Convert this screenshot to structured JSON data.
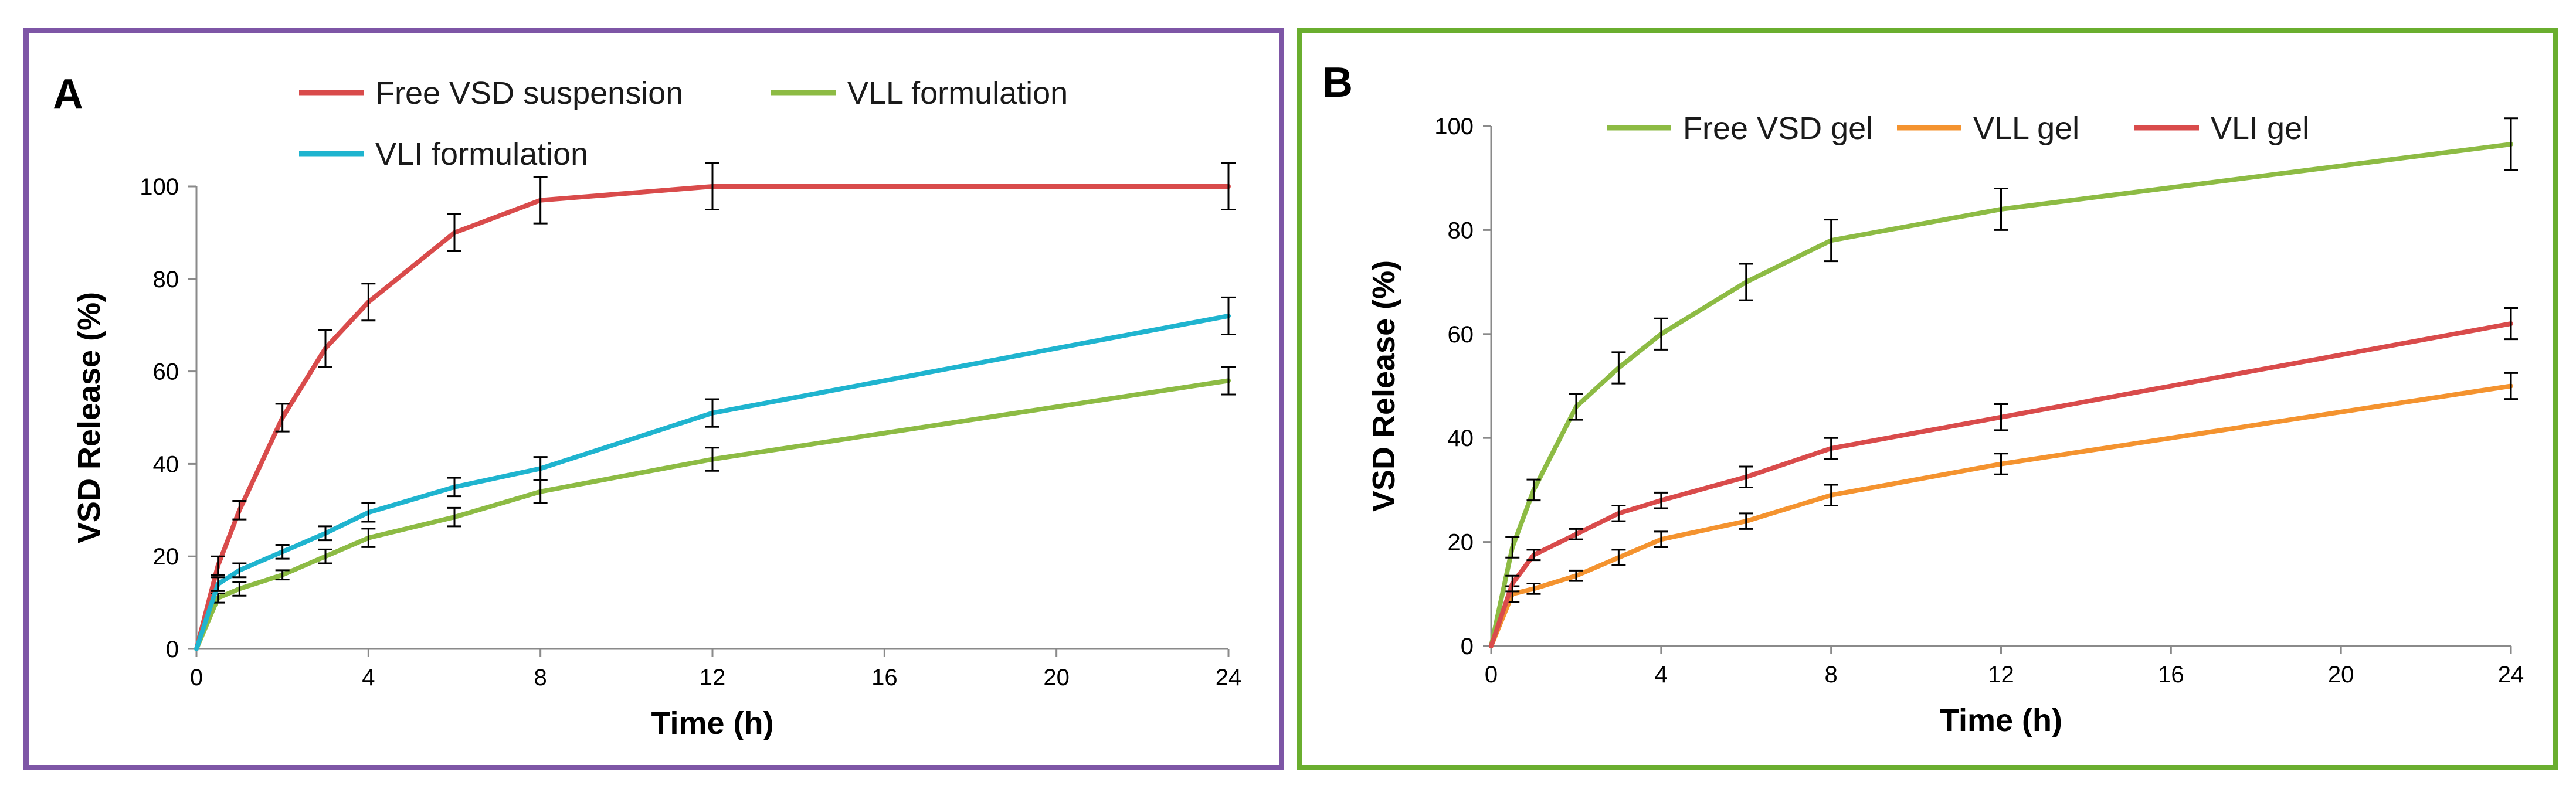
{
  "chart_data": [
    {
      "type": "line",
      "panel_label": "A",
      "xlabel": "Time (h)",
      "ylabel": "VSD Release (%)",
      "xlim": [
        0,
        24
      ],
      "ylim": [
        0,
        100
      ],
      "xticks": [
        0,
        4,
        8,
        12,
        16,
        20,
        24
      ],
      "yticks": [
        0,
        20,
        40,
        60,
        80,
        100
      ],
      "grid": false,
      "legend_position": "top",
      "series": [
        {
          "name": "Free VSD suspension",
          "color": "#d94b4b",
          "x": [
            0,
            0.5,
            1,
            2,
            3,
            4,
            6,
            8,
            12,
            24
          ],
          "y": [
            0,
            18,
            30,
            50,
            65,
            75,
            90,
            97,
            100,
            100
          ],
          "err": [
            0,
            2,
            2,
            3,
            4,
            4,
            4,
            5,
            5,
            5
          ]
        },
        {
          "name": "VLL formulation",
          "color": "#8dbb44",
          "x": [
            0,
            0.5,
            1,
            2,
            3,
            4,
            6,
            8,
            12,
            24
          ],
          "y": [
            0,
            11,
            13,
            16,
            20,
            24,
            28.5,
            34,
            41,
            58
          ],
          "err": [
            0,
            1,
            1.5,
            1,
            1.5,
            2,
            2,
            2.5,
            2.5,
            3
          ]
        },
        {
          "name": "VLI formulation",
          "color": "#1fb4cf",
          "x": [
            0,
            0.5,
            1,
            2,
            3,
            4,
            6,
            8,
            12,
            24
          ],
          "y": [
            0,
            14,
            17,
            21,
            25,
            29.5,
            35,
            39,
            51,
            72
          ],
          "err": [
            0,
            1.5,
            1.5,
            1.5,
            1.5,
            2,
            2,
            2.5,
            3,
            4
          ]
        }
      ]
    },
    {
      "type": "line",
      "panel_label": "B",
      "xlabel": "Time (h)",
      "ylabel": "VSD Release (%)",
      "xlim": [
        0,
        24
      ],
      "ylim": [
        0,
        100
      ],
      "xticks": [
        0,
        4,
        8,
        12,
        16,
        20,
        24
      ],
      "yticks": [
        0,
        20,
        40,
        60,
        80,
        100
      ],
      "grid": false,
      "legend_position": "top",
      "series": [
        {
          "name": "Free VSD gel",
          "color": "#8dbb44",
          "x": [
            0,
            0.5,
            1,
            2,
            3,
            4,
            6,
            8,
            12,
            24
          ],
          "y": [
            0,
            19,
            30,
            46,
            53.5,
            60,
            70,
            78,
            84,
            96.5
          ],
          "err": [
            0,
            2,
            2,
            2.5,
            3,
            3,
            3.5,
            4,
            4,
            5
          ]
        },
        {
          "name": "VLL gel",
          "color": "#f4932f",
          "x": [
            0,
            0.5,
            1,
            2,
            3,
            4,
            6,
            8,
            12,
            24
          ],
          "y": [
            0,
            10,
            11,
            13.5,
            17,
            20.5,
            24,
            29,
            35,
            50
          ],
          "err": [
            0,
            1.5,
            1,
            1,
            1.5,
            1.5,
            1.5,
            2,
            2,
            2.5
          ]
        },
        {
          "name": "VLI gel",
          "color": "#d94b4b",
          "x": [
            0,
            0.5,
            1,
            2,
            3,
            4,
            6,
            8,
            12,
            24
          ],
          "y": [
            0,
            12,
            17.5,
            21.5,
            25.5,
            28,
            32.5,
            38,
            44,
            62
          ],
          "err": [
            0,
            1.5,
            1,
            1,
            1.5,
            1.5,
            2,
            2,
            2.5,
            3
          ]
        }
      ]
    }
  ]
}
